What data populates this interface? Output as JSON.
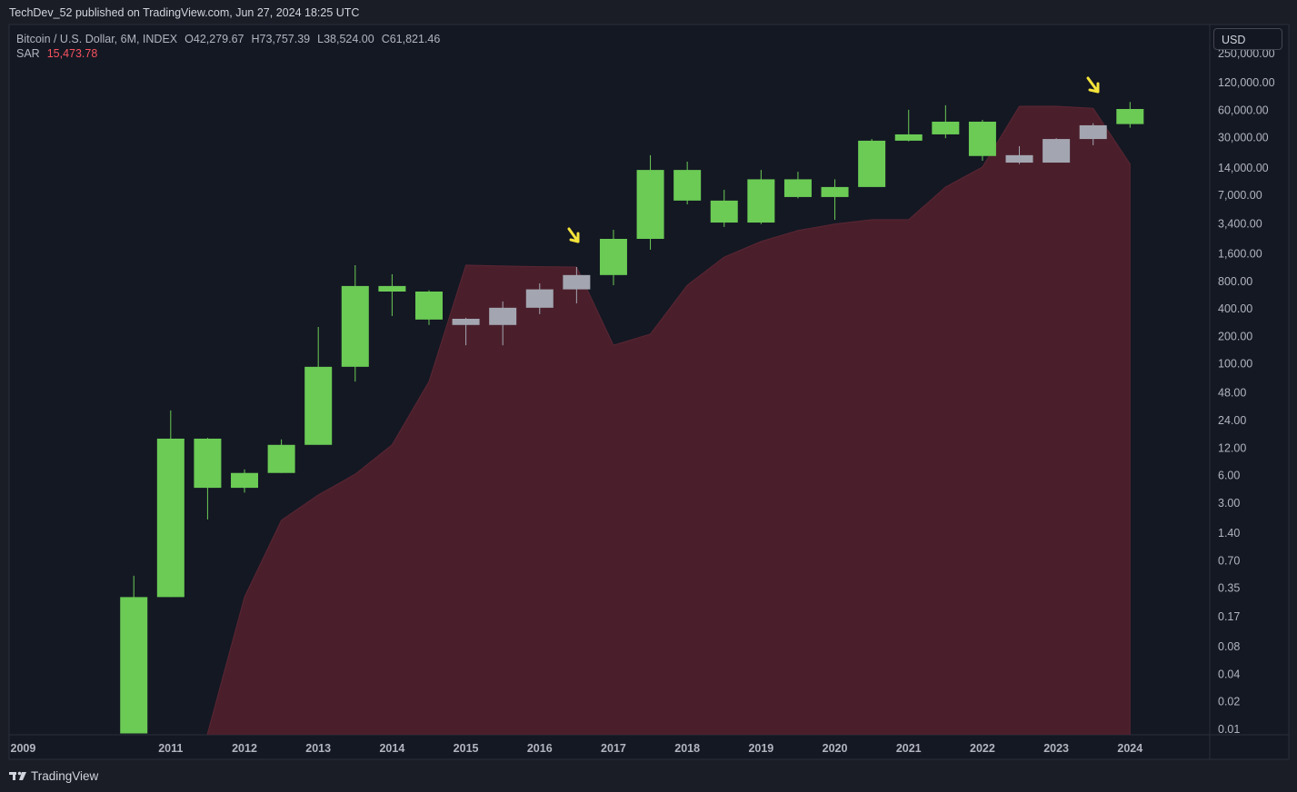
{
  "header": {
    "publisher": "TechDev_52 published on TradingView.com, Jun 27, 2024 18:25 UTC"
  },
  "chart_data": {
    "type": "candlestick",
    "symbol": "Bitcoin / U.S. Dollar, 6M, INDEX",
    "ohlc_labels": {
      "open": "O42,279.67",
      "high": "H73,757.39",
      "low": "L38,524.00",
      "close": "C61,821.46"
    },
    "currency": "USD",
    "log_scale": true,
    "grid": false,
    "x": [
      2010.5,
      2011,
      2011.5,
      2012,
      2012.5,
      2013,
      2013.5,
      2014,
      2014.5,
      2015,
      2015.5,
      2016,
      2016.5,
      2017,
      2017.5,
      2018,
      2018.5,
      2019,
      2019.5,
      2020,
      2020.5,
      2021,
      2021.5,
      2022,
      2022.5,
      2023,
      2023.5,
      2024
    ],
    "open": [
      0.009,
      0.28,
      15.2,
      4.4,
      6.4,
      13,
      93,
      713,
      620,
      312,
      267,
      412,
      655,
      940,
      2340,
      13300,
      6140,
      3530,
      10500,
      6720,
      8650,
      27800,
      32600,
      44900,
      19300,
      16000,
      29000,
      42279.67
    ],
    "high": [
      0.48,
      31,
      15.5,
      7,
      14.9,
      254,
      1206,
      959,
      640,
      320,
      483,
      762,
      1150,
      2940,
      19300,
      16400,
      8060,
      13300,
      12700,
      10500,
      29000,
      60600,
      68000,
      47000,
      24200,
      29600,
      43200,
      73757.39
    ],
    "low": [
      0.009,
      0.28,
      1.98,
      3.9,
      6.4,
      13,
      64,
      335,
      267,
      160,
      160,
      351,
      461,
      727,
      1780,
      5580,
      3160,
      3400,
      6500,
      3790,
      8650,
      27300,
      29600,
      16800,
      15400,
      16000,
      24800,
      38524
    ],
    "close": [
      0.28,
      15.2,
      4.4,
      6.4,
      13,
      93,
      713,
      620,
      306,
      267,
      412,
      655,
      940,
      2340,
      13300,
      6140,
      3530,
      10500,
      6720,
      8650,
      27800,
      32600,
      44900,
      18900,
      16000,
      29000,
      41000,
      61821.46
    ],
    "colors": [
      "#6bcb55",
      "#6bcb55",
      "#6bcb55",
      "#6bcb55",
      "#6bcb55",
      "#6bcb55",
      "#6bcb55",
      "#6bcb55",
      "#6bcb55",
      "#a3a6b1",
      "#a3a6b1",
      "#a3a6b1",
      "#a3a6b1",
      "#6bcb55",
      "#6bcb55",
      "#6bcb55",
      "#6bcb55",
      "#6bcb55",
      "#6bcb55",
      "#6bcb55",
      "#6bcb55",
      "#6bcb55",
      "#6bcb55",
      "#6bcb55",
      "#a3a6b1",
      "#a3a6b1",
      "#a3a6b1",
      "#6bcb55"
    ],
    "sar": {
      "name": "SAR",
      "color": "#4a1f2b",
      "values": [
        null,
        null,
        0.009,
        0.28,
        1.94,
        3.68,
        6.2,
        13,
        64,
        1206,
        1180,
        1160,
        1150,
        160,
        212,
        727,
        1480,
        2190,
        2890,
        3400,
        3790,
        3790,
        8650,
        14300,
        66300,
        66300,
        63000,
        15473.78
      ],
      "value_labels": [
        null,
        null,
        null,
        null,
        null,
        null,
        null,
        null,
        null,
        null,
        null,
        null,
        null,
        null,
        null,
        null,
        null,
        null,
        null,
        null,
        null,
        null,
        null,
        null,
        null,
        null,
        null,
        "15,473.78"
      ]
    },
    "xlim": [
      2008.81,
      2025.08
    ],
    "xticks": [
      2009,
      2011,
      2012,
      2013,
      2014,
      2015,
      2016,
      2017,
      2018,
      2019,
      2020,
      2021,
      2022,
      2023,
      2024
    ],
    "ylim": [
      0.0087,
      520000
    ],
    "yticks": [
      {
        "value": 250000,
        "label": "250,000.00"
      },
      {
        "value": 120000,
        "label": "120,000.00"
      },
      {
        "value": 60000,
        "label": "60,000.00"
      },
      {
        "value": 30000,
        "label": "30,000.00"
      },
      {
        "value": 14000,
        "label": "14,000.00"
      },
      {
        "value": 7000,
        "label": "7,000.00"
      },
      {
        "value": 3400,
        "label": "3,400.00"
      },
      {
        "value": 1600,
        "label": "1,600.00"
      },
      {
        "value": 800,
        "label": "800.00"
      },
      {
        "value": 400,
        "label": "400.00"
      },
      {
        "value": 200,
        "label": "200.00"
      },
      {
        "value": 100,
        "label": "100.00"
      },
      {
        "value": 48,
        "label": "48.00"
      },
      {
        "value": 24,
        "label": "24.00"
      },
      {
        "value": 12,
        "label": "12.00"
      },
      {
        "value": 6,
        "label": "6.00"
      },
      {
        "value": 3,
        "label": "3.00"
      },
      {
        "value": 1.4,
        "label": "1.40"
      },
      {
        "value": 0.7,
        "label": "0.70"
      },
      {
        "value": 0.35,
        "label": "0.35"
      },
      {
        "value": 0.17,
        "label": "0.17"
      },
      {
        "value": 0.08,
        "label": "0.08"
      },
      {
        "value": 0.04,
        "label": "0.04"
      },
      {
        "value": 0.02,
        "label": "0.02"
      },
      {
        "value": 0.01,
        "label": "0.01"
      }
    ]
  },
  "footer": {
    "brand": "TradingView"
  }
}
